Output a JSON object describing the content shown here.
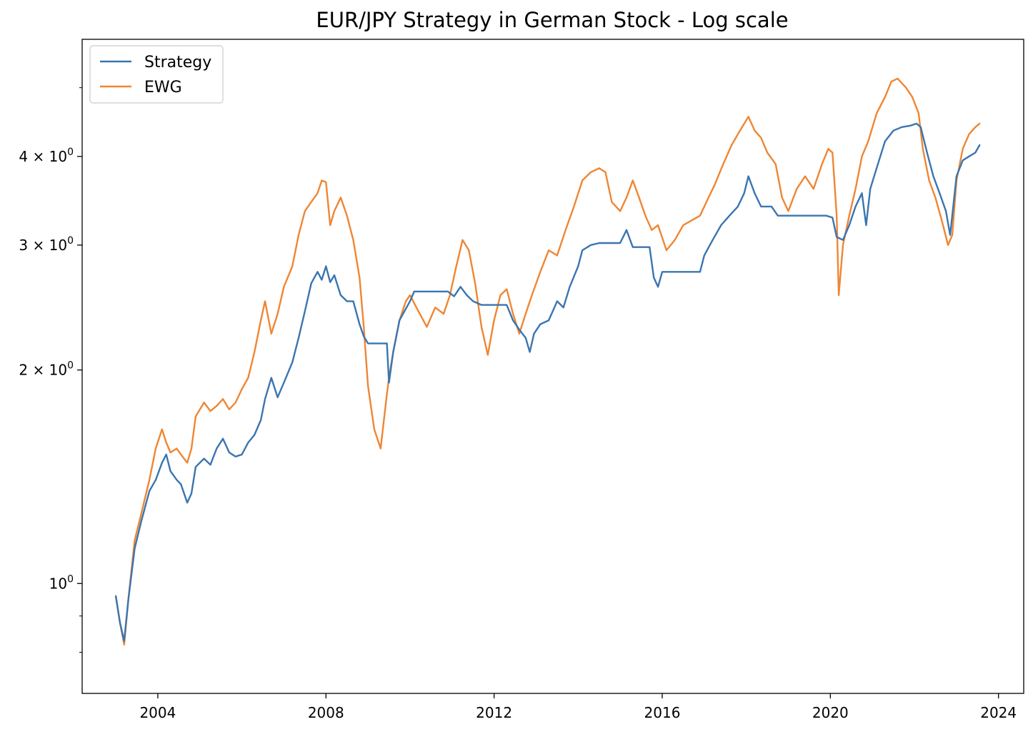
{
  "chart_data": {
    "type": "line",
    "title": "EUR/JPY Strategy in German Stock - Log scale",
    "xlabel": "",
    "ylabel": "",
    "yscale": "log",
    "xlim": [
      2002.2,
      2024.6
    ],
    "ylim": [
      0.7,
      5.85
    ],
    "x_ticks": [
      2004,
      2008,
      2012,
      2016,
      2020,
      2024
    ],
    "x_tick_labels": [
      "2004",
      "2008",
      "2012",
      "2016",
      "2020",
      "2024"
    ],
    "y_ticks": [
      1,
      2,
      3,
      4
    ],
    "y_tick_labels": [
      {
        "base": "10",
        "exp": "0",
        "prefix": ""
      },
      {
        "base": "10",
        "exp": "0",
        "prefix": "2 × "
      },
      {
        "base": "10",
        "exp": "0",
        "prefix": "3 × "
      },
      {
        "base": "10",
        "exp": "0",
        "prefix": "4 × "
      }
    ],
    "y_minor_ticks": [
      0.8,
      0.9
    ],
    "legend_position": "upper-left",
    "series": [
      {
        "name": "Strategy",
        "color": "#3a75b0",
        "points": [
          [
            2003.0,
            0.96
          ],
          [
            2003.1,
            0.88
          ],
          [
            2003.2,
            0.83
          ],
          [
            2003.3,
            0.95
          ],
          [
            2003.45,
            1.12
          ],
          [
            2003.6,
            1.22
          ],
          [
            2003.8,
            1.35
          ],
          [
            2003.95,
            1.4
          ],
          [
            2004.1,
            1.48
          ],
          [
            2004.2,
            1.52
          ],
          [
            2004.3,
            1.44
          ],
          [
            2004.45,
            1.4
          ],
          [
            2004.55,
            1.38
          ],
          [
            2004.7,
            1.3
          ],
          [
            2004.8,
            1.34
          ],
          [
            2004.9,
            1.46
          ],
          [
            2005.1,
            1.5
          ],
          [
            2005.25,
            1.47
          ],
          [
            2005.4,
            1.55
          ],
          [
            2005.55,
            1.6
          ],
          [
            2005.7,
            1.53
          ],
          [
            2005.85,
            1.51
          ],
          [
            2006.0,
            1.52
          ],
          [
            2006.15,
            1.58
          ],
          [
            2006.3,
            1.62
          ],
          [
            2006.45,
            1.7
          ],
          [
            2006.55,
            1.82
          ],
          [
            2006.7,
            1.95
          ],
          [
            2006.85,
            1.83
          ],
          [
            2007.0,
            1.92
          ],
          [
            2007.2,
            2.05
          ],
          [
            2007.35,
            2.22
          ],
          [
            2007.5,
            2.42
          ],
          [
            2007.65,
            2.65
          ],
          [
            2007.8,
            2.75
          ],
          [
            2007.9,
            2.68
          ],
          [
            2008.0,
            2.8
          ],
          [
            2008.1,
            2.66
          ],
          [
            2008.2,
            2.72
          ],
          [
            2008.35,
            2.55
          ],
          [
            2008.5,
            2.5
          ],
          [
            2008.65,
            2.5
          ],
          [
            2008.8,
            2.32
          ],
          [
            2008.9,
            2.23
          ],
          [
            2009.0,
            2.18
          ],
          [
            2009.3,
            2.18
          ],
          [
            2009.45,
            2.18
          ],
          [
            2009.5,
            1.92
          ],
          [
            2009.6,
            2.12
          ],
          [
            2009.75,
            2.35
          ],
          [
            2009.9,
            2.44
          ],
          [
            2010.0,
            2.5
          ],
          [
            2010.1,
            2.58
          ],
          [
            2010.9,
            2.58
          ],
          [
            2011.05,
            2.54
          ],
          [
            2011.2,
            2.62
          ],
          [
            2011.35,
            2.55
          ],
          [
            2011.5,
            2.5
          ],
          [
            2011.7,
            2.47
          ],
          [
            2011.9,
            2.47
          ],
          [
            2012.3,
            2.47
          ],
          [
            2012.45,
            2.35
          ],
          [
            2012.6,
            2.28
          ],
          [
            2012.75,
            2.22
          ],
          [
            2012.85,
            2.12
          ],
          [
            2012.95,
            2.25
          ],
          [
            2013.1,
            2.32
          ],
          [
            2013.3,
            2.35
          ],
          [
            2013.5,
            2.5
          ],
          [
            2013.65,
            2.45
          ],
          [
            2013.8,
            2.62
          ],
          [
            2014.0,
            2.8
          ],
          [
            2014.1,
            2.95
          ],
          [
            2014.3,
            3.0
          ],
          [
            2014.5,
            3.02
          ],
          [
            2014.8,
            3.02
          ],
          [
            2015.0,
            3.02
          ],
          [
            2015.15,
            3.15
          ],
          [
            2015.3,
            2.98
          ],
          [
            2015.5,
            2.98
          ],
          [
            2015.7,
            2.98
          ],
          [
            2015.8,
            2.7
          ],
          [
            2015.9,
            2.62
          ],
          [
            2016.0,
            2.75
          ],
          [
            2016.2,
            2.75
          ],
          [
            2016.9,
            2.75
          ],
          [
            2017.0,
            2.9
          ],
          [
            2017.2,
            3.05
          ],
          [
            2017.4,
            3.2
          ],
          [
            2017.6,
            3.3
          ],
          [
            2017.8,
            3.4
          ],
          [
            2017.95,
            3.55
          ],
          [
            2018.05,
            3.75
          ],
          [
            2018.2,
            3.55
          ],
          [
            2018.35,
            3.4
          ],
          [
            2018.6,
            3.4
          ],
          [
            2018.75,
            3.3
          ],
          [
            2019.0,
            3.3
          ],
          [
            2019.5,
            3.3
          ],
          [
            2019.9,
            3.3
          ],
          [
            2020.05,
            3.28
          ],
          [
            2020.15,
            3.08
          ],
          [
            2020.3,
            3.05
          ],
          [
            2020.45,
            3.2
          ],
          [
            2020.6,
            3.4
          ],
          [
            2020.75,
            3.55
          ],
          [
            2020.85,
            3.2
          ],
          [
            2020.95,
            3.6
          ],
          [
            2021.1,
            3.85
          ],
          [
            2021.3,
            4.2
          ],
          [
            2021.5,
            4.35
          ],
          [
            2021.7,
            4.4
          ],
          [
            2021.9,
            4.42
          ],
          [
            2022.05,
            4.45
          ],
          [
            2022.15,
            4.4
          ],
          [
            2022.3,
            4.05
          ],
          [
            2022.45,
            3.75
          ],
          [
            2022.6,
            3.55
          ],
          [
            2022.75,
            3.35
          ],
          [
            2022.85,
            3.1
          ],
          [
            2023.0,
            3.75
          ],
          [
            2023.15,
            3.95
          ],
          [
            2023.3,
            4.0
          ],
          [
            2023.45,
            4.05
          ],
          [
            2023.55,
            4.15
          ]
        ]
      },
      {
        "name": "EWG",
        "color": "#ef8633",
        "points": [
          [
            2003.0,
            0.96
          ],
          [
            2003.1,
            0.88
          ],
          [
            2003.2,
            0.82
          ],
          [
            2003.3,
            0.95
          ],
          [
            2003.45,
            1.15
          ],
          [
            2003.6,
            1.25
          ],
          [
            2003.8,
            1.4
          ],
          [
            2003.95,
            1.55
          ],
          [
            2004.1,
            1.65
          ],
          [
            2004.2,
            1.58
          ],
          [
            2004.3,
            1.53
          ],
          [
            2004.45,
            1.55
          ],
          [
            2004.55,
            1.52
          ],
          [
            2004.7,
            1.48
          ],
          [
            2004.8,
            1.55
          ],
          [
            2004.9,
            1.72
          ],
          [
            2005.1,
            1.8
          ],
          [
            2005.25,
            1.75
          ],
          [
            2005.4,
            1.78
          ],
          [
            2005.55,
            1.82
          ],
          [
            2005.7,
            1.76
          ],
          [
            2005.85,
            1.8
          ],
          [
            2006.0,
            1.88
          ],
          [
            2006.15,
            1.95
          ],
          [
            2006.3,
            2.12
          ],
          [
            2006.45,
            2.35
          ],
          [
            2006.55,
            2.5
          ],
          [
            2006.7,
            2.25
          ],
          [
            2006.85,
            2.4
          ],
          [
            2007.0,
            2.62
          ],
          [
            2007.2,
            2.8
          ],
          [
            2007.35,
            3.1
          ],
          [
            2007.5,
            3.35
          ],
          [
            2007.65,
            3.45
          ],
          [
            2007.8,
            3.55
          ],
          [
            2007.9,
            3.7
          ],
          [
            2008.0,
            3.68
          ],
          [
            2008.1,
            3.2
          ],
          [
            2008.2,
            3.35
          ],
          [
            2008.35,
            3.5
          ],
          [
            2008.5,
            3.3
          ],
          [
            2008.65,
            3.05
          ],
          [
            2008.8,
            2.7
          ],
          [
            2008.9,
            2.3
          ],
          [
            2009.0,
            1.9
          ],
          [
            2009.15,
            1.65
          ],
          [
            2009.3,
            1.55
          ],
          [
            2009.45,
            1.85
          ],
          [
            2009.5,
            1.95
          ],
          [
            2009.6,
            2.12
          ],
          [
            2009.75,
            2.35
          ],
          [
            2009.9,
            2.5
          ],
          [
            2010.0,
            2.55
          ],
          [
            2010.2,
            2.42
          ],
          [
            2010.4,
            2.3
          ],
          [
            2010.6,
            2.45
          ],
          [
            2010.8,
            2.4
          ],
          [
            2010.95,
            2.55
          ],
          [
            2011.1,
            2.8
          ],
          [
            2011.25,
            3.05
          ],
          [
            2011.4,
            2.95
          ],
          [
            2011.55,
            2.65
          ],
          [
            2011.7,
            2.3
          ],
          [
            2011.85,
            2.1
          ],
          [
            2012.0,
            2.35
          ],
          [
            2012.15,
            2.55
          ],
          [
            2012.3,
            2.6
          ],
          [
            2012.45,
            2.4
          ],
          [
            2012.6,
            2.25
          ],
          [
            2012.75,
            2.4
          ],
          [
            2012.9,
            2.55
          ],
          [
            2013.1,
            2.75
          ],
          [
            2013.3,
            2.95
          ],
          [
            2013.5,
            2.9
          ],
          [
            2013.7,
            3.15
          ],
          [
            2013.9,
            3.4
          ],
          [
            2014.1,
            3.7
          ],
          [
            2014.3,
            3.8
          ],
          [
            2014.5,
            3.85
          ],
          [
            2014.65,
            3.8
          ],
          [
            2014.8,
            3.45
          ],
          [
            2015.0,
            3.35
          ],
          [
            2015.15,
            3.5
          ],
          [
            2015.3,
            3.7
          ],
          [
            2015.45,
            3.5
          ],
          [
            2015.6,
            3.3
          ],
          [
            2015.75,
            3.15
          ],
          [
            2015.9,
            3.2
          ],
          [
            2016.1,
            2.95
          ],
          [
            2016.3,
            3.05
          ],
          [
            2016.5,
            3.2
          ],
          [
            2016.7,
            3.25
          ],
          [
            2016.9,
            3.3
          ],
          [
            2017.05,
            3.45
          ],
          [
            2017.25,
            3.65
          ],
          [
            2017.45,
            3.9
          ],
          [
            2017.65,
            4.15
          ],
          [
            2017.85,
            4.35
          ],
          [
            2018.05,
            4.55
          ],
          [
            2018.2,
            4.35
          ],
          [
            2018.35,
            4.25
          ],
          [
            2018.5,
            4.05
          ],
          [
            2018.7,
            3.9
          ],
          [
            2018.85,
            3.5
          ],
          [
            2019.0,
            3.35
          ],
          [
            2019.2,
            3.6
          ],
          [
            2019.4,
            3.75
          ],
          [
            2019.6,
            3.6
          ],
          [
            2019.8,
            3.9
          ],
          [
            2019.95,
            4.1
          ],
          [
            2020.05,
            4.05
          ],
          [
            2020.15,
            3.3
          ],
          [
            2020.2,
            2.55
          ],
          [
            2020.3,
            3.0
          ],
          [
            2020.45,
            3.3
          ],
          [
            2020.6,
            3.6
          ],
          [
            2020.75,
            4.0
          ],
          [
            2020.9,
            4.2
          ],
          [
            2021.1,
            4.6
          ],
          [
            2021.3,
            4.85
          ],
          [
            2021.45,
            5.1
          ],
          [
            2021.6,
            5.15
          ],
          [
            2021.8,
            5.0
          ],
          [
            2021.95,
            4.85
          ],
          [
            2022.1,
            4.6
          ],
          [
            2022.2,
            4.1
          ],
          [
            2022.35,
            3.7
          ],
          [
            2022.5,
            3.5
          ],
          [
            2022.65,
            3.25
          ],
          [
            2022.8,
            3.0
          ],
          [
            2022.9,
            3.1
          ],
          [
            2023.0,
            3.7
          ],
          [
            2023.15,
            4.1
          ],
          [
            2023.3,
            4.3
          ],
          [
            2023.45,
            4.4
          ],
          [
            2023.55,
            4.45
          ]
        ]
      }
    ]
  }
}
